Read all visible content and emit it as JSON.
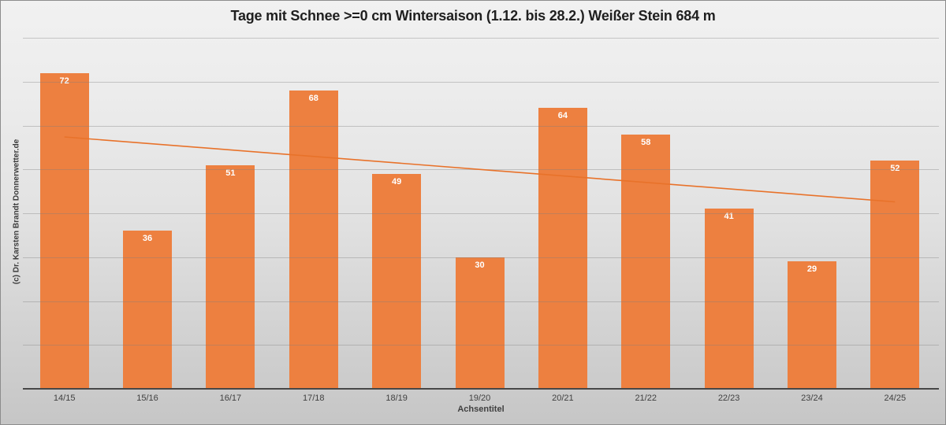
{
  "chart_data": {
    "type": "bar",
    "title": "Tage mit Schnee >=0 cm Wintersaison (1.12. bis 28.2.) Weißer Stein 684 m",
    "categories": [
      "14/15",
      "15/16",
      "16/17",
      "17/18",
      "18/19",
      "19/20",
      "20/21",
      "21/22",
      "22/23",
      "23/24",
      "24/25"
    ],
    "values": [
      72,
      36,
      51,
      68,
      49,
      30,
      64,
      58,
      41,
      29,
      52
    ],
    "xlabel": "Achsentitel",
    "ylabel": "",
    "ylim": [
      0,
      80
    ],
    "grid": {
      "on": true,
      "step": 10
    },
    "legend": "none",
    "y_tick_labels_visible": false,
    "bar_color": "#ED8040",
    "trendline": {
      "type": "linear",
      "start_value": 57.4,
      "end_value": 42.6,
      "color": "#E8722A"
    },
    "watermark": "(c) Dr. Karsten Brandt Donnerwetter.de"
  }
}
